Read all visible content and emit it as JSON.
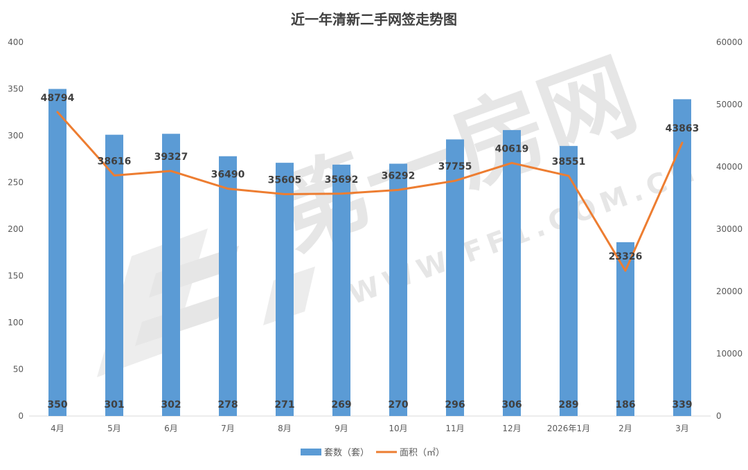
{
  "colors": {
    "bar": "#5b9bd5",
    "line": "#ed7d31",
    "axis": "#d9d9d9",
    "text": "#595959",
    "label": "#404040",
    "watermark": "#e6e6e6"
  },
  "watermark": {
    "logo_text": "第一房网",
    "url_text": "WWW.FF1.COM.CN"
  },
  "chart_data": {
    "type": "bar",
    "title": "近一年清新二手网签走势图",
    "categories": [
      "4月",
      "5月",
      "6月",
      "7月",
      "8月",
      "9月",
      "10月",
      "11月",
      "12月",
      "2026年1月",
      "2月",
      "3月"
    ],
    "series": [
      {
        "name": "套数（套）",
        "type": "bar",
        "axis": "left",
        "values": [
          350,
          301,
          302,
          278,
          271,
          269,
          270,
          296,
          306,
          289,
          186,
          339
        ]
      },
      {
        "name": "面积（㎡）",
        "type": "line",
        "axis": "right",
        "values": [
          48794,
          38616,
          39327,
          36490,
          35605,
          35692,
          36292,
          37755,
          40619,
          38551,
          23326,
          43863
        ]
      }
    ],
    "y_left": {
      "ylim": [
        0,
        400
      ],
      "ticks": [
        "0",
        "50",
        "100",
        "150",
        "200",
        "250",
        "300",
        "350",
        "400"
      ]
    },
    "y_right": {
      "ylim": [
        0,
        60000
      ],
      "ticks": [
        "0",
        "10000",
        "20000",
        "30000",
        "40000",
        "50000",
        "60000"
      ]
    },
    "grid": false,
    "legend": "bottom"
  }
}
